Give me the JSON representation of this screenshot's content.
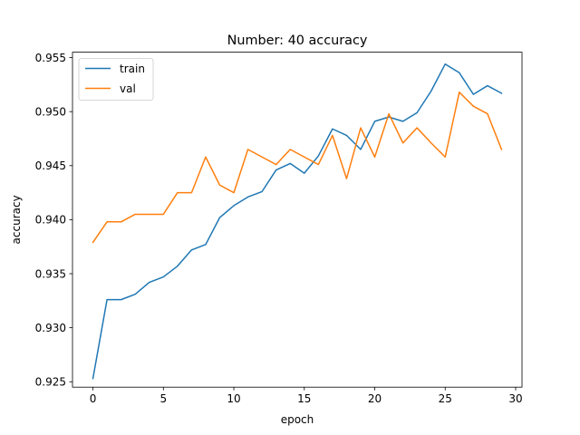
{
  "chart_data": {
    "type": "line",
    "title": "Number: 40 accuracy",
    "xlabel": "epoch",
    "ylabel": "accuracy",
    "xlim": [
      -1.45,
      30.45
    ],
    "ylim": [
      0.9245,
      0.9555
    ],
    "xticks": [
      0,
      5,
      10,
      15,
      20,
      25,
      30
    ],
    "yticks": [
      0.925,
      0.93,
      0.935,
      0.94,
      0.945,
      0.95,
      0.955
    ],
    "ytick_labels": [
      "0.925",
      "0.930",
      "0.935",
      "0.940",
      "0.945",
      "0.950",
      "0.955"
    ],
    "grid": false,
    "legend_position": "upper-left",
    "x": [
      0,
      1,
      2,
      3,
      4,
      5,
      6,
      7,
      8,
      9,
      10,
      11,
      12,
      13,
      14,
      15,
      16,
      17,
      18,
      19,
      20,
      21,
      22,
      23,
      24,
      25,
      26,
      27,
      28,
      29
    ],
    "series": [
      {
        "name": "train",
        "color": "#1f77b4",
        "values": [
          0.9253,
          0.9326,
          0.9326,
          0.9331,
          0.9342,
          0.9347,
          0.9357,
          0.9372,
          0.9377,
          0.9402,
          0.9413,
          0.9421,
          0.9426,
          0.9446,
          0.9452,
          0.9443,
          0.9459,
          0.9484,
          0.9478,
          0.9465,
          0.9491,
          0.9495,
          0.9491,
          0.9499,
          0.9519,
          0.9544,
          0.9536,
          0.9516,
          0.9524,
          0.9517
        ]
      },
      {
        "name": "val",
        "color": "#ff7f0e",
        "values": [
          0.9379,
          0.9398,
          0.9398,
          0.9405,
          0.9405,
          0.9405,
          0.9425,
          0.9425,
          0.9458,
          0.9432,
          0.9425,
          0.9465,
          0.9458,
          0.9451,
          0.9465,
          0.9458,
          0.9451,
          0.9478,
          0.9438,
          0.9485,
          0.9458,
          0.9498,
          0.9471,
          0.9485,
          0.9471,
          0.9458,
          0.9518,
          0.9505,
          0.9498,
          0.9465
        ]
      }
    ]
  }
}
